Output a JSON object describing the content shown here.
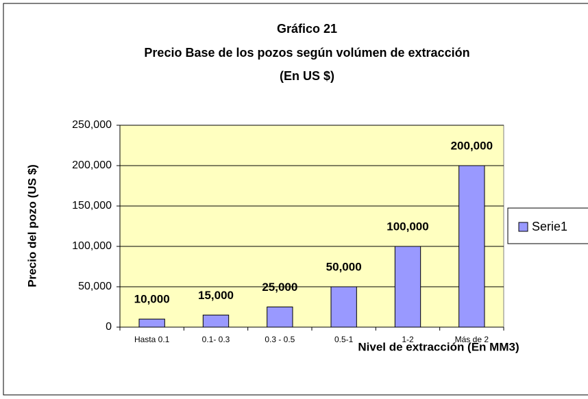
{
  "chart_data": {
    "type": "bar",
    "title": [
      "Gráfico 21",
      "Precio Base de los pozos según volúmen de extracción",
      "(En US $)"
    ],
    "xlabel": "Nivel de extracción (En MM3)",
    "ylabel": "Precio del pozo (US $)",
    "categories": [
      "Hasta 0.1",
      "0.1- 0.3",
      "0.3 - 0.5",
      "0.5-1",
      "1-2",
      "Más de 2"
    ],
    "series": [
      {
        "name": "Serie1",
        "color": "#9999ff",
        "values": [
          10000,
          15000,
          25000,
          50000,
          100000,
          200000
        ],
        "value_labels": [
          "10,000",
          "15,000",
          "25,000",
          "50,000",
          "100,000",
          "200,000"
        ]
      }
    ],
    "ylim": [
      0,
      250000
    ],
    "yticks": [
      {
        "value": 0,
        "label": "0"
      },
      {
        "value": 50000,
        "label": "50,000"
      },
      {
        "value": 100000,
        "label": "100,000"
      },
      {
        "value": 150000,
        "label": "150,000"
      },
      {
        "value": 200000,
        "label": "200,000"
      },
      {
        "value": 250000,
        "label": "250,000"
      }
    ],
    "grid": true,
    "legend": "right"
  }
}
